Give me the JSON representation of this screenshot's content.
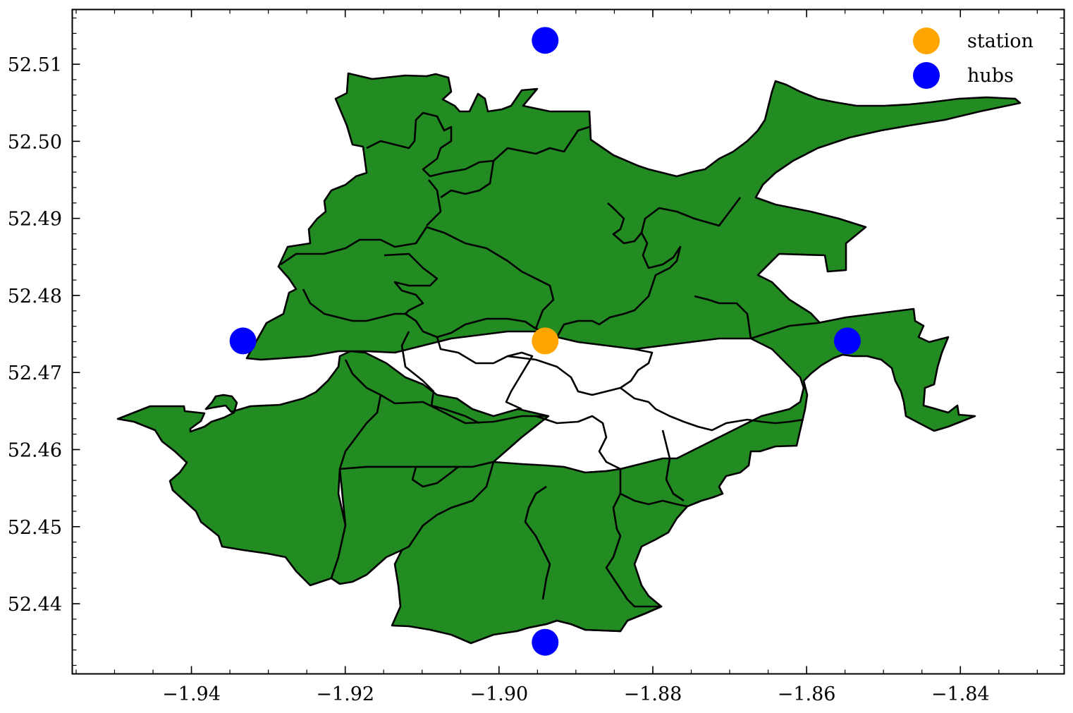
{
  "chart_data": {
    "type": "scatter",
    "title": "",
    "xlabel": "",
    "ylabel": "",
    "xlim": [
      -1.9555,
      -1.8265
    ],
    "ylim": [
      52.4309,
      52.5171
    ],
    "xticks": [
      -1.94,
      -1.92,
      -1.9,
      -1.88,
      -1.86,
      -1.84
    ],
    "xtick_labels": [
      "−1.94",
      "−1.92",
      "−1.90",
      "−1.88",
      "−1.86",
      "−1.84"
    ],
    "yticks": [
      52.44,
      52.45,
      52.46,
      52.47,
      52.48,
      52.49,
      52.5,
      52.51
    ],
    "ytick_labels": [
      "52.44",
      "52.45",
      "52.46",
      "52.47",
      "52.48",
      "52.49",
      "52.50",
      "52.51"
    ],
    "grid": false,
    "legend_position": "top-right",
    "region_fill": "#228b22",
    "region_edge": "#000000",
    "series": [
      {
        "name": "station",
        "color": "#ffa500",
        "points": [
          {
            "x": -1.894,
            "y": 52.4741
          }
        ]
      },
      {
        "name": "hubs",
        "color": "#0000ff",
        "points": [
          {
            "x": -1.894,
            "y": 52.5131
          },
          {
            "x": -1.9333,
            "y": 52.4741
          },
          {
            "x": -1.8547,
            "y": 52.4741
          },
          {
            "x": -1.894,
            "y": 52.435
          }
        ]
      }
    ]
  }
}
